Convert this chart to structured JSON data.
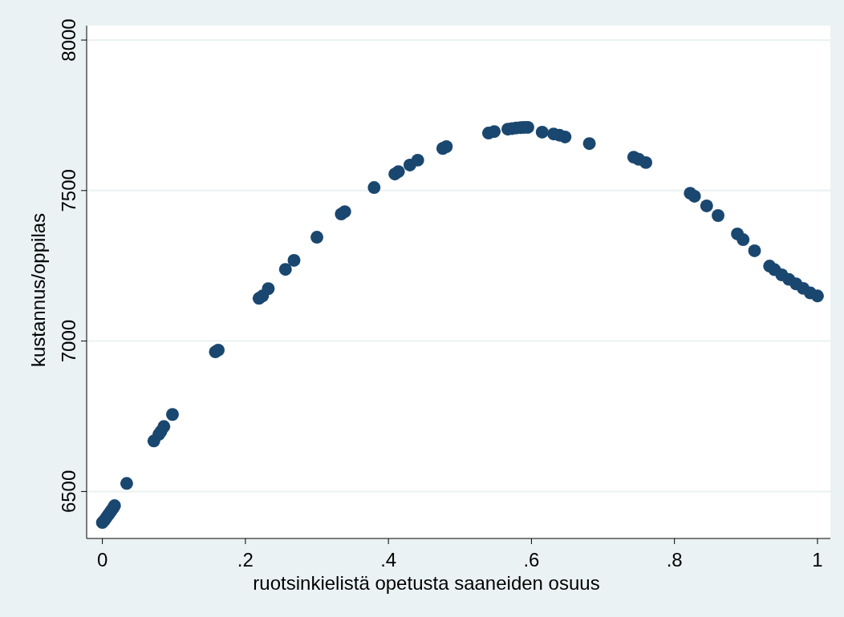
{
  "chart_data": {
    "type": "scatter",
    "xlabel": "ruotsinkielistä opetusta saaneiden osuus",
    "ylabel": "kustannus/oppilas",
    "xlim": [
      -0.022,
      1.018
    ],
    "ylim": [
      6344,
      8048
    ],
    "xticks": [
      {
        "value": 0,
        "label": "0"
      },
      {
        "value": 0.2,
        "label": ".2"
      },
      {
        "value": 0.4,
        "label": ".4"
      },
      {
        "value": 0.6,
        "label": ".6"
      },
      {
        "value": 0.8,
        "label": ".8"
      },
      {
        "value": 1,
        "label": "1"
      }
    ],
    "yticks": [
      6500,
      7000,
      7500,
      8000
    ],
    "grid": "y",
    "marker": "circle",
    "series": [
      {
        "color": "#1a476f",
        "x": [
          0,
          0.003,
          0.006,
          0.009,
          0.012,
          0.015,
          0.017,
          0.034,
          0.072,
          0.079,
          0.082,
          0.086,
          0.098,
          0.158,
          0.162,
          0.219,
          0.224,
          0.232,
          0.256,
          0.268,
          0.3,
          0.334,
          0.339,
          0.38,
          0.409,
          0.414,
          0.43,
          0.441,
          0.476,
          0.481,
          0.54,
          0.548,
          0.567,
          0.573,
          0.579,
          0.585,
          0.59,
          0.595,
          0.615,
          0.631,
          0.639,
          0.647,
          0.681,
          0.743,
          0.75,
          0.76,
          0.822,
          0.828,
          0.845,
          0.861,
          0.888,
          0.896,
          0.912,
          0.933,
          0.94,
          0.95,
          0.96,
          0.97,
          0.98,
          0.99,
          1
        ],
        "values": [
          6397,
          6405,
          6415,
          6425,
          6435,
          6445,
          6453,
          6527,
          6668,
          6690,
          6700,
          6716,
          6756,
          6964,
          6970,
          7142,
          7150,
          7174,
          7238,
          7268,
          7345,
          7422,
          7430,
          7510,
          7555,
          7563,
          7585,
          7601,
          7640,
          7646,
          7691,
          7696,
          7704,
          7706,
          7708,
          7709,
          7710,
          7710,
          7694,
          7688,
          7684,
          7678,
          7656,
          7611,
          7604,
          7593,
          7491,
          7481,
          7449,
          7417,
          7356,
          7337,
          7300,
          7249,
          7237,
          7220,
          7205,
          7190,
          7175,
          7160,
          7150
        ]
      }
    ]
  }
}
